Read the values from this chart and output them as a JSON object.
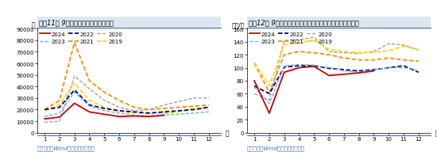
{
  "chart1": {
    "title": "图表11： 9月挖掎机销售环比延续改善",
    "ylabel": "台",
    "xlabel": "月",
    "footer": "资料来源：Wind，国盛证券研究所",
    "ylim": [
      0,
      90000
    ],
    "yticks": [
      0,
      10000,
      20000,
      30000,
      40000,
      50000,
      60000,
      70000,
      80000,
      90000
    ],
    "ytick_labels": [
      "0",
      "10000",
      "20000",
      "30000",
      "40000",
      "50000",
      "60000",
      "70000",
      "80000",
      "90000"
    ],
    "series": {
      "2024": {
        "color": "#cc0000",
        "linestyle": "solid",
        "linewidth": 1.3,
        "data": [
          12000,
          13500,
          25500,
          18000,
          16000,
          14000,
          14500,
          14000,
          15000,
          null,
          null,
          null
        ]
      },
      "2023": {
        "color": "#70b0e0",
        "linestyle": "dashed",
        "linewidth": 1.0,
        "data": [
          14000,
          17000,
          35000,
          23000,
          19000,
          17000,
          15000,
          14500,
          15500,
          16000,
          17000,
          18000
        ]
      },
      "2022": {
        "color": "#00008b",
        "linestyle": "dashed",
        "linewidth": 1.3,
        "data": [
          20000,
          22000,
          37000,
          24000,
          21000,
          19000,
          18000,
          17000,
          18000,
          19000,
          20000,
          22000
        ]
      },
      "2021": {
        "color": "#ff8c00",
        "linestyle": "dashed",
        "linewidth": 1.3,
        "data": [
          20000,
          28000,
          78000,
          45000,
          35000,
          28000,
          22000,
          20000,
          21000,
          22000,
          23000,
          24000
        ]
      },
      "2020": {
        "color": "#a0a0a0",
        "linestyle": "dashed",
        "linewidth": 1.0,
        "data": [
          9000,
          10000,
          49000,
          38000,
          28000,
          22000,
          19000,
          20000,
          24000,
          27000,
          30000,
          30000
        ]
      },
      "2019": {
        "color": "#ffd700",
        "linestyle": "dashed",
        "linewidth": 1.3,
        "data": [
          19000,
          24000,
          43000,
          28000,
          22000,
          19000,
          17000,
          16500,
          17000,
          18000,
          21000,
          22000
        ]
      }
    }
  },
  "chart2": {
    "title": "图表12： 9月挖掎机开工小时数同样有所回升，但仍在低位",
    "ylabel": "小时/月",
    "xlabel": "月",
    "footer": "资料来源：Wind，国盛证券研究所",
    "ylim": [
      0,
      160
    ],
    "yticks": [
      0,
      20,
      40,
      60,
      80,
      100,
      120,
      140,
      160
    ],
    "ytick_labels": [
      "0",
      "20",
      "40",
      "60",
      "80",
      "100",
      "120",
      "140",
      "160"
    ],
    "series": {
      "2024": {
        "color": "#cc0000",
        "linestyle": "solid",
        "linewidth": 1.3,
        "data": [
          80,
          30,
          93,
          100,
          102,
          88,
          90,
          92,
          95,
          null,
          null,
          null
        ]
      },
      "2023": {
        "color": "#70b0e0",
        "linestyle": "dashed",
        "linewidth": 1.0,
        "data": [
          70,
          45,
          103,
          105,
          104,
          100,
          95,
          93,
          97,
          100,
          100,
          95
        ]
      },
      "2022": {
        "color": "#00008b",
        "linestyle": "dashed",
        "linewidth": 1.3,
        "data": [
          72,
          60,
          101,
          103,
          103,
          99,
          97,
          95,
          97,
          100,
          103,
          93
        ]
      },
      "2021": {
        "color": "#ff8c00",
        "linestyle": "dashed",
        "linewidth": 1.3,
        "data": [
          107,
          62,
          120,
          125,
          123,
          120,
          115,
          112,
          112,
          115,
          112,
          110
        ]
      },
      "2020": {
        "color": "#a0a0a0",
        "linestyle": "dashed",
        "linewidth": 1.0,
        "data": [
          60,
          50,
          142,
          143,
          147,
          125,
          123,
          122,
          125,
          137,
          135,
          127
        ]
      },
      "2019": {
        "color": "#ffd700",
        "linestyle": "dashed",
        "linewidth": 1.3,
        "data": [
          108,
          72,
          136,
          138,
          143,
          128,
          125,
          123,
          124,
          126,
          133,
          128
        ]
      }
    }
  },
  "title_bg_color": "#dce6f1",
  "title_fontsize": 6.0,
  "tick_fontsize": 5.0,
  "label_fontsize": 5.5,
  "legend_fontsize": 5.0,
  "footer_color": "#4472c4",
  "footer_fontsize": 5.0,
  "header_line_color": "#4472c4",
  "background_color": "#ffffff"
}
